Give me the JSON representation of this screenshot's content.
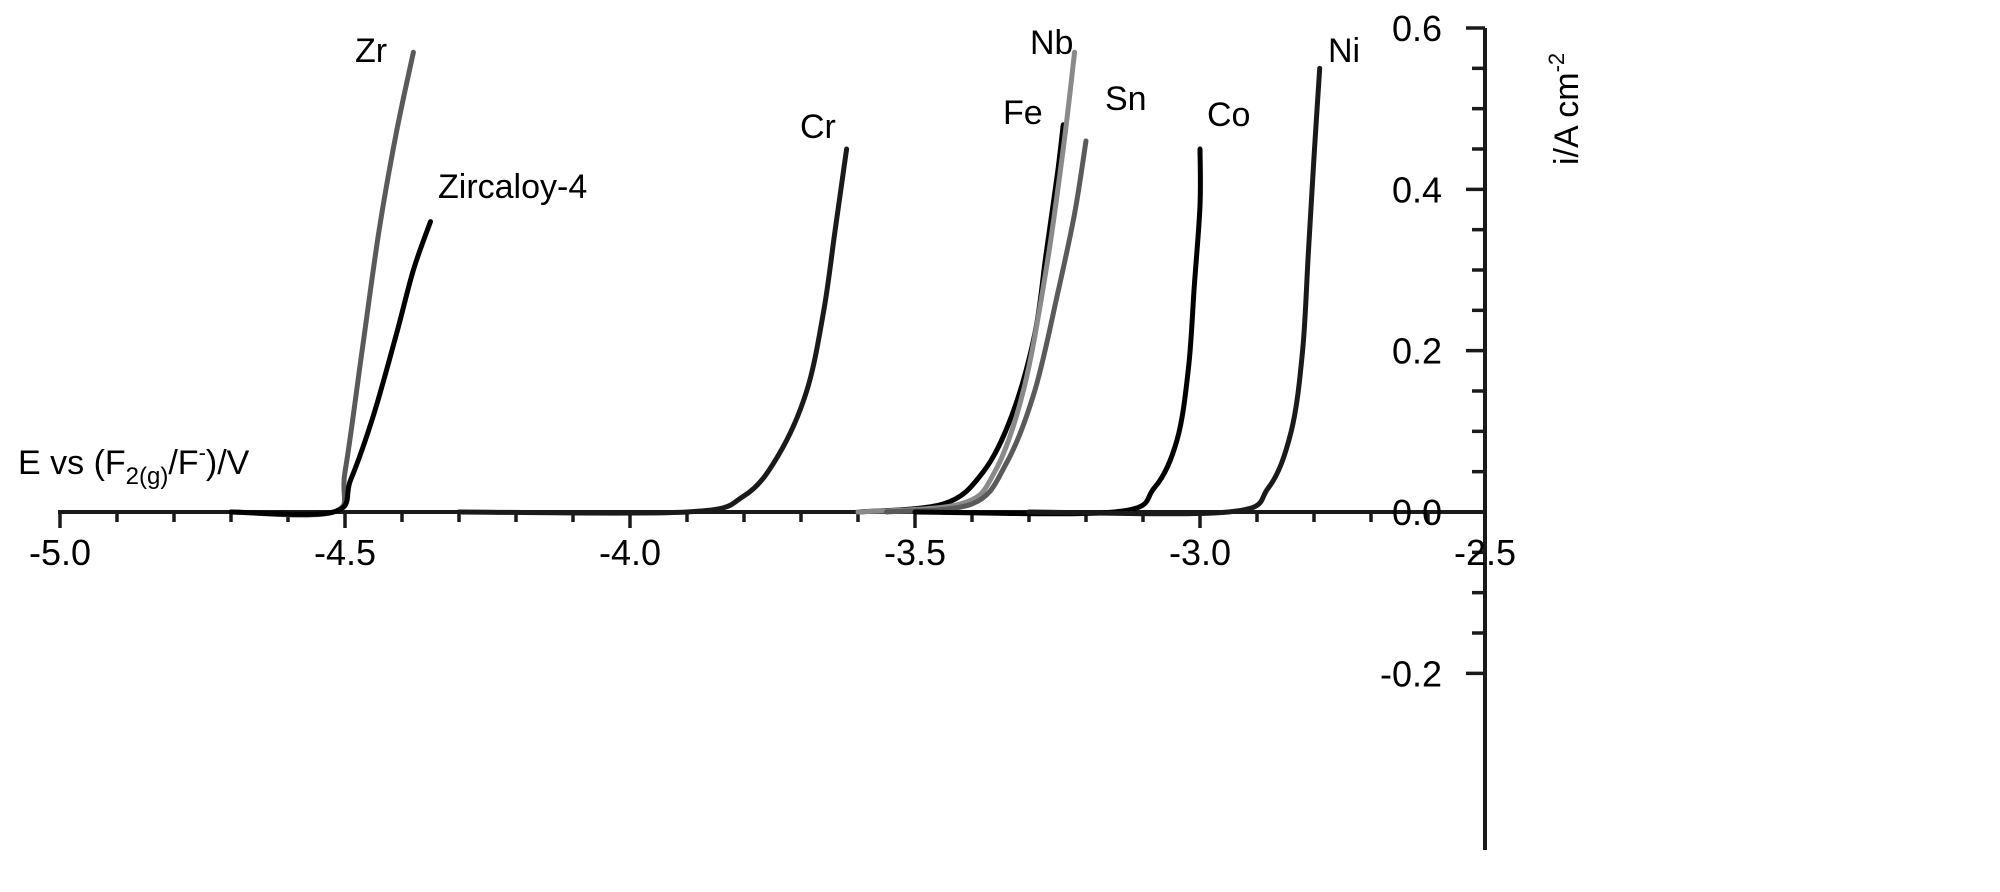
{
  "chart_data": {
    "type": "line",
    "title": "",
    "xlabel": "E vs (F2(g)/F-)/V",
    "xlabel_parts": {
      "main": "E vs (F",
      "sub": "2(g)",
      "mid": "/F",
      "sup": "-",
      "end": ")/V"
    },
    "ylabel": "i/A cm-2",
    "ylabel_parts": {
      "main": "i/A cm",
      "sup": "-2"
    },
    "xlim": [
      -5.0,
      -2.5
    ],
    "ylim": [
      -0.2,
      0.6
    ],
    "x_ticks": [
      "-5.0",
      "-4.5",
      "-4.0",
      "-3.5",
      "-3.0",
      "-2.5"
    ],
    "y_ticks": [
      "-0.2",
      "0.0",
      "0.2",
      "0.4",
      "0.6"
    ],
    "grid": false,
    "legend": "inline labels at curve ends",
    "series": [
      {
        "name": "Zr",
        "color": "#5a5a5a",
        "points": [
          [
            -4.7,
            0.0
          ],
          [
            -4.52,
            0.0
          ],
          [
            -4.5,
            0.05
          ],
          [
            -4.47,
            0.2
          ],
          [
            -4.44,
            0.35
          ],
          [
            -4.41,
            0.47
          ],
          [
            -4.38,
            0.57
          ]
        ]
      },
      {
        "name": "Zircaloy-4",
        "color": "#000000",
        "points": [
          [
            -4.7,
            0.0
          ],
          [
            -4.52,
            0.0
          ],
          [
            -4.49,
            0.04
          ],
          [
            -4.45,
            0.12
          ],
          [
            -4.41,
            0.22
          ],
          [
            -4.38,
            0.3
          ],
          [
            -4.35,
            0.36
          ]
        ]
      },
      {
        "name": "Cr",
        "color": "#1a1a1a",
        "points": [
          [
            -4.3,
            0.0
          ],
          [
            -3.9,
            0.0
          ],
          [
            -3.8,
            0.02
          ],
          [
            -3.74,
            0.07
          ],
          [
            -3.69,
            0.15
          ],
          [
            -3.66,
            0.25
          ],
          [
            -3.64,
            0.35
          ],
          [
            -3.62,
            0.45
          ]
        ]
      },
      {
        "name": "Fe",
        "color": "#000000",
        "points": [
          [
            -3.6,
            0.0
          ],
          [
            -3.45,
            0.01
          ],
          [
            -3.38,
            0.05
          ],
          [
            -3.33,
            0.12
          ],
          [
            -3.29,
            0.22
          ],
          [
            -3.27,
            0.32
          ],
          [
            -3.25,
            0.42
          ],
          [
            -3.24,
            0.48
          ]
        ]
      },
      {
        "name": "Nb",
        "color": "#8a8a8a",
        "points": [
          [
            -3.6,
            0.0
          ],
          [
            -3.42,
            0.01
          ],
          [
            -3.36,
            0.05
          ],
          [
            -3.31,
            0.15
          ],
          [
            -3.27,
            0.3
          ],
          [
            -3.24,
            0.45
          ],
          [
            -3.22,
            0.57
          ]
        ]
      },
      {
        "name": "Sn",
        "color": "#5a5a5a",
        "points": [
          [
            -3.55,
            0.0
          ],
          [
            -3.4,
            0.01
          ],
          [
            -3.34,
            0.06
          ],
          [
            -3.29,
            0.15
          ],
          [
            -3.25,
            0.27
          ],
          [
            -3.22,
            0.37
          ],
          [
            -3.2,
            0.46
          ]
        ]
      },
      {
        "name": "Co",
        "color": "#000000",
        "points": [
          [
            -3.5,
            0.0
          ],
          [
            -3.15,
            0.0
          ],
          [
            -3.08,
            0.03
          ],
          [
            -3.04,
            0.09
          ],
          [
            -3.02,
            0.18
          ],
          [
            -3.01,
            0.28
          ],
          [
            -3.0,
            0.38
          ],
          [
            -3.0,
            0.45
          ]
        ]
      },
      {
        "name": "Ni",
        "color": "#1a1a1a",
        "points": [
          [
            -3.3,
            0.0
          ],
          [
            -2.95,
            0.0
          ],
          [
            -2.88,
            0.03
          ],
          [
            -2.84,
            0.1
          ],
          [
            -2.82,
            0.2
          ],
          [
            -2.81,
            0.32
          ],
          [
            -2.8,
            0.44
          ],
          [
            -2.79,
            0.55
          ]
        ]
      }
    ]
  },
  "labels": {
    "Zr": {
      "text": "Zr",
      "color": "#555555"
    },
    "Zircaloy": {
      "text": "Zircaloy-4",
      "color": "#000000"
    },
    "Cr": {
      "text": "Cr",
      "color": "#000000"
    },
    "Fe": {
      "text": "Fe",
      "color": "#000000"
    },
    "Nb": {
      "text": "Nb",
      "color": "#666666"
    },
    "Sn": {
      "text": "Sn",
      "color": "#666666"
    },
    "Co": {
      "text": "Co",
      "color": "#000000"
    },
    "Ni": {
      "text": "Ni",
      "color": "#000000"
    }
  }
}
